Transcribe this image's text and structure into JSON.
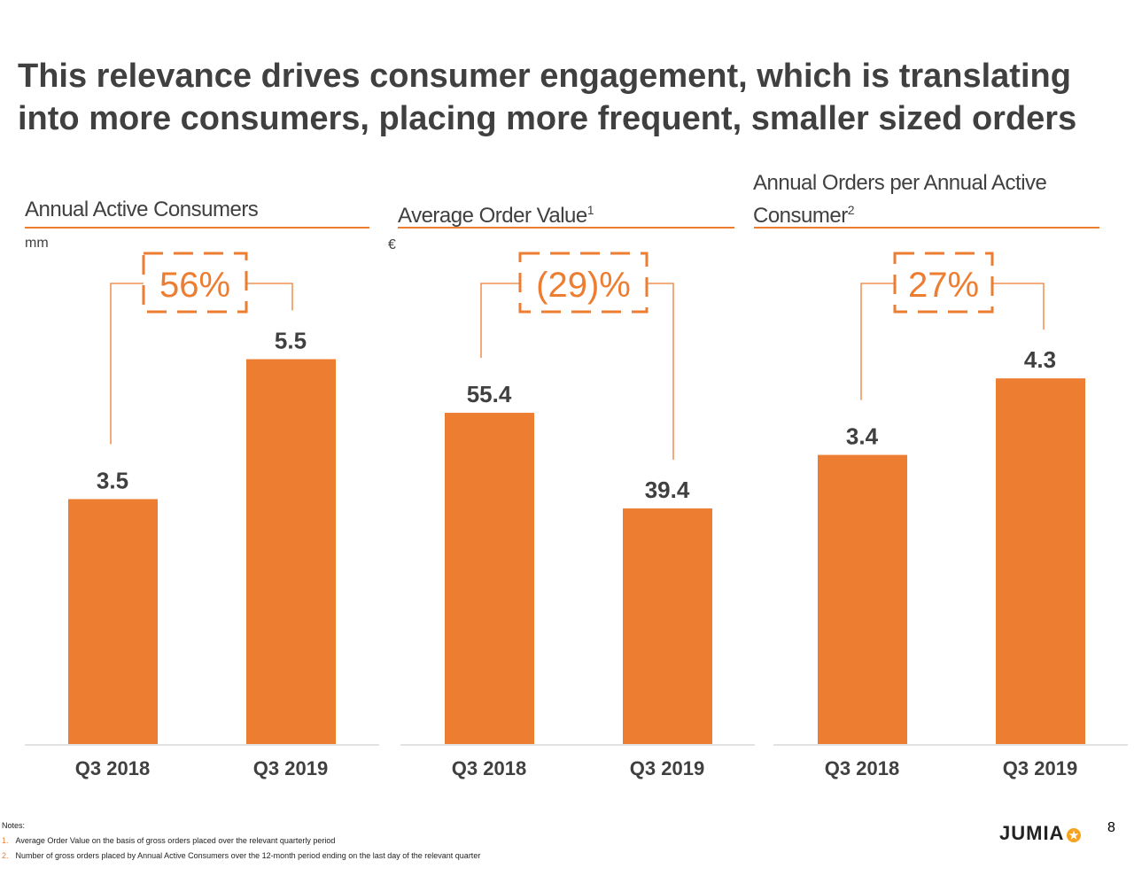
{
  "title_line1": "This relevance drives consumer engagement, which is translating",
  "title_line2": "into more consumers, placing more frequent, smaller sized orders",
  "colors": {
    "bar": "#ED7D31",
    "text": "#404040"
  },
  "chart_data": [
    {
      "type": "bar",
      "title": "Annual Active Consumers",
      "title_sup": "",
      "unit": "mm",
      "categories": [
        "Q3 2018",
        "Q3 2019"
      ],
      "values": [
        3.5,
        5.5
      ],
      "labels": [
        "3.5",
        "5.5"
      ],
      "change": "56%"
    },
    {
      "type": "bar",
      "title": "Average Order Value",
      "title_sup": "1",
      "unit": "€",
      "categories": [
        "Q3 2018",
        "Q3 2019"
      ],
      "values": [
        55.4,
        39.4
      ],
      "labels": [
        "55.4",
        "39.4"
      ],
      "change": "(29)%"
    },
    {
      "type": "bar",
      "title": "Annual Orders per Annual Active Consumer",
      "title_line1": "Annual Orders per Annual Active",
      "title_line2": "Consumer",
      "title_sup": "2",
      "unit": "",
      "categories": [
        "Q3 2018",
        "Q3 2019"
      ],
      "values": [
        3.4,
        4.3
      ],
      "labels": [
        "3.4",
        "4.3"
      ],
      "change": "27%"
    }
  ],
  "notes": {
    "heading": "Notes:",
    "items": [
      {
        "num": "1.",
        "text": "Average Order Value on the basis of gross orders placed over the relevant quarterly period"
      },
      {
        "num": "2.",
        "text": "Number of gross orders placed by Annual Active Consumers over the 12-month period ending on the last day of the relevant quarter"
      }
    ]
  },
  "logo": "JUMIA",
  "page_number": "8"
}
